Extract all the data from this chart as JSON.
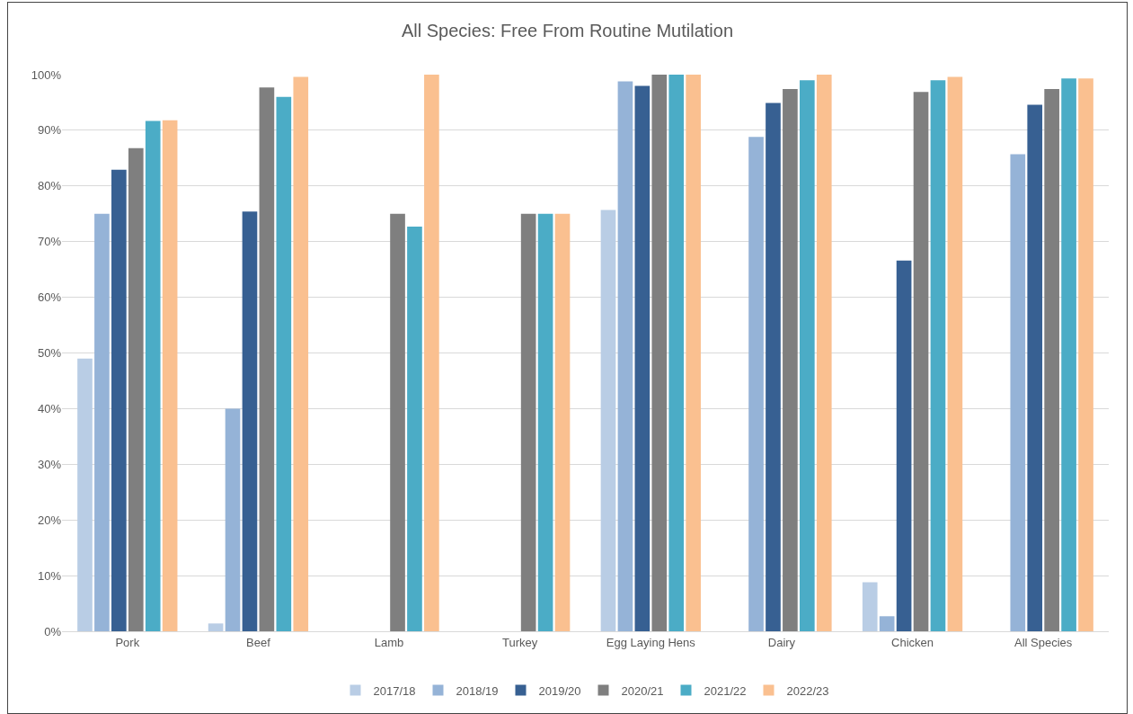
{
  "chart_data": {
    "type": "bar",
    "title": "All Species: Free From Routine Mutilation",
    "categories": [
      "Pork",
      "Beef",
      "Lamb",
      "Turkey",
      "Egg Laying Hens",
      "Dairy",
      "Chicken",
      "All Species"
    ],
    "series": [
      {
        "name": "2017/18",
        "color": "#b9cde5",
        "values": [
          49,
          1.4,
          null,
          null,
          75.7,
          null,
          8.8,
          null
        ]
      },
      {
        "name": "2018/19",
        "color": "#95b3d7",
        "values": [
          75,
          40,
          null,
          null,
          98.8,
          88.8,
          2.7,
          85.7
        ]
      },
      {
        "name": "2019/20",
        "color": "#376092",
        "values": [
          82.9,
          75.4,
          null,
          null,
          98,
          94.9,
          66.6,
          94.6
        ]
      },
      {
        "name": "2020/21",
        "color": "#7f7f7f",
        "values": [
          86.8,
          97.7,
          75,
          75,
          100,
          97.4,
          96.9,
          97.4
        ]
      },
      {
        "name": "2021/22",
        "color": "#4bacc6",
        "values": [
          91.7,
          96,
          72.7,
          75,
          100,
          99,
          99,
          99.3
        ]
      },
      {
        "name": "2022/23",
        "color": "#fac090",
        "values": [
          91.8,
          99.6,
          100,
          75,
          100,
          100,
          99.6,
          99.3
        ]
      }
    ],
    "ylim": [
      0,
      100
    ],
    "yticks": [
      {
        "value": 0,
        "label": "0%"
      },
      {
        "value": 10,
        "label": "10%"
      },
      {
        "value": 20,
        "label": "20%"
      },
      {
        "value": 30,
        "label": "30%"
      },
      {
        "value": 40,
        "label": "40%"
      },
      {
        "value": 50,
        "label": "50%"
      },
      {
        "value": 60,
        "label": "60%"
      },
      {
        "value": 70,
        "label": "70%"
      },
      {
        "value": 80,
        "label": "80%"
      },
      {
        "value": 90,
        "label": "90%"
      },
      {
        "value": 100,
        "label": "100%"
      }
    ],
    "grid": "y",
    "legend": "bottom"
  }
}
